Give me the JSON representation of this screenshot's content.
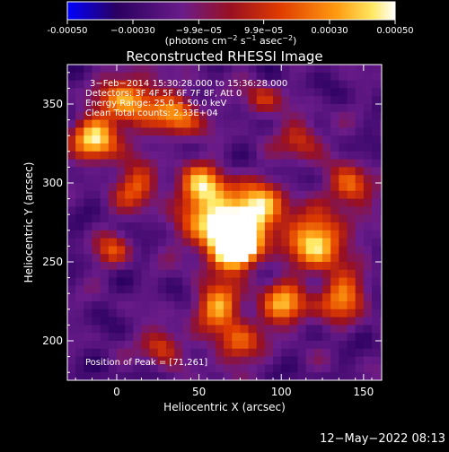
{
  "chart_data": {
    "type": "heatmap",
    "title": "Reconstructed RHESSI Image",
    "xlabel": "Heliocentric X (arcsec)",
    "ylabel": "Heliocentric Y (arcsec)",
    "xlim": [
      -30,
      161
    ],
    "ylim": [
      175,
      375
    ],
    "x_ticks": [
      0,
      50,
      100,
      150
    ],
    "y_ticks": [
      200,
      250,
      300,
      350
    ],
    "colorbar": {
      "range": [
        -0.0005,
        0.0005
      ],
      "tick_values": [
        -0.0005,
        -0.0003,
        -9.9e-05,
        9.9e-05,
        0.0003,
        0.0005
      ],
      "tick_labels": [
        "-0.00050",
        "−0.00030",
        "−9.9e−05",
        "9.9e−05",
        "0.00030",
        "0.00050"
      ],
      "unit_label_parts": [
        "(photons cm",
        "−2",
        " s",
        "−1",
        " asec",
        "−2",
        ")"
      ],
      "colors": [
        "#0000ff",
        "#3a0078",
        "#6a1c8a",
        "#a01818",
        "#e03c00",
        "#ff9a10",
        "#ffe860",
        "#ffffff"
      ]
    },
    "annotations": {
      "time_range": "3−Feb−2014 15:30:28.000 to 15:36:28.000",
      "detectors": "Detectors: 3F 4F 5F 6F 7F 8F, Att 0",
      "energy": "Energy Range: 25.0 − 50.0 keV",
      "clean": "Clean    Total counts: 2.33E+04",
      "peak": "Position of Peak = [71,261]"
    },
    "peak": [
      71,
      261
    ],
    "blobs": [
      {
        "x": 71,
        "y": 261,
        "amp": 1.0,
        "s": 9
      },
      {
        "x": 60,
        "y": 275,
        "amp": 0.8,
        "s": 14
      },
      {
        "x": 85,
        "y": 285,
        "amp": 0.65,
        "s": 12
      },
      {
        "x": 50,
        "y": 300,
        "amp": 0.6,
        "s": 10
      },
      {
        "x": -15,
        "y": 330,
        "amp": 0.7,
        "s": 10
      },
      {
        "x": 5,
        "y": 355,
        "amp": 0.6,
        "s": 12
      },
      {
        "x": 35,
        "y": 345,
        "amp": 0.55,
        "s": 10
      },
      {
        "x": 10,
        "y": 300,
        "amp": 0.45,
        "s": 10
      },
      {
        "x": 120,
        "y": 265,
        "amp": 0.75,
        "s": 12
      },
      {
        "x": 140,
        "y": 300,
        "amp": 0.55,
        "s": 9
      },
      {
        "x": 135,
        "y": 230,
        "amp": 0.55,
        "s": 10
      },
      {
        "x": 100,
        "y": 225,
        "amp": 0.6,
        "s": 10
      },
      {
        "x": 60,
        "y": 225,
        "amp": 0.6,
        "s": 10
      },
      {
        "x": 70,
        "y": 200,
        "amp": 0.45,
        "s": 10
      },
      {
        "x": 25,
        "y": 200,
        "amp": 0.45,
        "s": 8
      },
      {
        "x": 110,
        "y": 330,
        "amp": 0.4,
        "s": 9
      },
      {
        "x": 85,
        "y": 355,
        "amp": 0.35,
        "s": 8
      },
      {
        "x": -5,
        "y": 260,
        "amp": 0.35,
        "s": 8
      }
    ]
  },
  "footer": {
    "timestamp": "12−May−2022 08:13"
  }
}
